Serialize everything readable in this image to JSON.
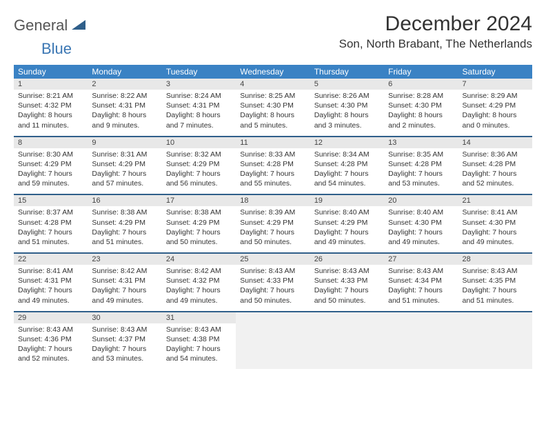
{
  "logo": {
    "text1": "General",
    "text2": "Blue"
  },
  "title": "December 2024",
  "location": "Son, North Brabant, The Netherlands",
  "colors": {
    "header_bg": "#3a82c4",
    "header_text": "#ffffff",
    "daynum_bg": "#e8e8e8",
    "blank_bg": "#f1f1f1",
    "sep": "#2f5f8a",
    "logo_gray": "#555555",
    "logo_blue": "#3a76b3",
    "text": "#333333"
  },
  "day_names": [
    "Sunday",
    "Monday",
    "Tuesday",
    "Wednesday",
    "Thursday",
    "Friday",
    "Saturday"
  ],
  "weeks": [
    [
      {
        "n": "1",
        "sr": "8:21 AM",
        "ss": "4:32 PM",
        "dh": "8",
        "dm": "11"
      },
      {
        "n": "2",
        "sr": "8:22 AM",
        "ss": "4:31 PM",
        "dh": "8",
        "dm": "9"
      },
      {
        "n": "3",
        "sr": "8:24 AM",
        "ss": "4:31 PM",
        "dh": "8",
        "dm": "7"
      },
      {
        "n": "4",
        "sr": "8:25 AM",
        "ss": "4:30 PM",
        "dh": "8",
        "dm": "5"
      },
      {
        "n": "5",
        "sr": "8:26 AM",
        "ss": "4:30 PM",
        "dh": "8",
        "dm": "3"
      },
      {
        "n": "6",
        "sr": "8:28 AM",
        "ss": "4:30 PM",
        "dh": "8",
        "dm": "2"
      },
      {
        "n": "7",
        "sr": "8:29 AM",
        "ss": "4:29 PM",
        "dh": "8",
        "dm": "0"
      }
    ],
    [
      {
        "n": "8",
        "sr": "8:30 AM",
        "ss": "4:29 PM",
        "dh": "7",
        "dm": "59"
      },
      {
        "n": "9",
        "sr": "8:31 AM",
        "ss": "4:29 PM",
        "dh": "7",
        "dm": "57"
      },
      {
        "n": "10",
        "sr": "8:32 AM",
        "ss": "4:29 PM",
        "dh": "7",
        "dm": "56"
      },
      {
        "n": "11",
        "sr": "8:33 AM",
        "ss": "4:28 PM",
        "dh": "7",
        "dm": "55"
      },
      {
        "n": "12",
        "sr": "8:34 AM",
        "ss": "4:28 PM",
        "dh": "7",
        "dm": "54"
      },
      {
        "n": "13",
        "sr": "8:35 AM",
        "ss": "4:28 PM",
        "dh": "7",
        "dm": "53"
      },
      {
        "n": "14",
        "sr": "8:36 AM",
        "ss": "4:28 PM",
        "dh": "7",
        "dm": "52"
      }
    ],
    [
      {
        "n": "15",
        "sr": "8:37 AM",
        "ss": "4:28 PM",
        "dh": "7",
        "dm": "51"
      },
      {
        "n": "16",
        "sr": "8:38 AM",
        "ss": "4:29 PM",
        "dh": "7",
        "dm": "51"
      },
      {
        "n": "17",
        "sr": "8:38 AM",
        "ss": "4:29 PM",
        "dh": "7",
        "dm": "50"
      },
      {
        "n": "18",
        "sr": "8:39 AM",
        "ss": "4:29 PM",
        "dh": "7",
        "dm": "50"
      },
      {
        "n": "19",
        "sr": "8:40 AM",
        "ss": "4:29 PM",
        "dh": "7",
        "dm": "49"
      },
      {
        "n": "20",
        "sr": "8:40 AM",
        "ss": "4:30 PM",
        "dh": "7",
        "dm": "49"
      },
      {
        "n": "21",
        "sr": "8:41 AM",
        "ss": "4:30 PM",
        "dh": "7",
        "dm": "49"
      }
    ],
    [
      {
        "n": "22",
        "sr": "8:41 AM",
        "ss": "4:31 PM",
        "dh": "7",
        "dm": "49"
      },
      {
        "n": "23",
        "sr": "8:42 AM",
        "ss": "4:31 PM",
        "dh": "7",
        "dm": "49"
      },
      {
        "n": "24",
        "sr": "8:42 AM",
        "ss": "4:32 PM",
        "dh": "7",
        "dm": "49"
      },
      {
        "n": "25",
        "sr": "8:43 AM",
        "ss": "4:33 PM",
        "dh": "7",
        "dm": "50"
      },
      {
        "n": "26",
        "sr": "8:43 AM",
        "ss": "4:33 PM",
        "dh": "7",
        "dm": "50"
      },
      {
        "n": "27",
        "sr": "8:43 AM",
        "ss": "4:34 PM",
        "dh": "7",
        "dm": "51"
      },
      {
        "n": "28",
        "sr": "8:43 AM",
        "ss": "4:35 PM",
        "dh": "7",
        "dm": "51"
      }
    ],
    [
      {
        "n": "29",
        "sr": "8:43 AM",
        "ss": "4:36 PM",
        "dh": "7",
        "dm": "52"
      },
      {
        "n": "30",
        "sr": "8:43 AM",
        "ss": "4:37 PM",
        "dh": "7",
        "dm": "53"
      },
      {
        "n": "31",
        "sr": "8:43 AM",
        "ss": "4:38 PM",
        "dh": "7",
        "dm": "54"
      },
      null,
      null,
      null,
      null
    ]
  ]
}
